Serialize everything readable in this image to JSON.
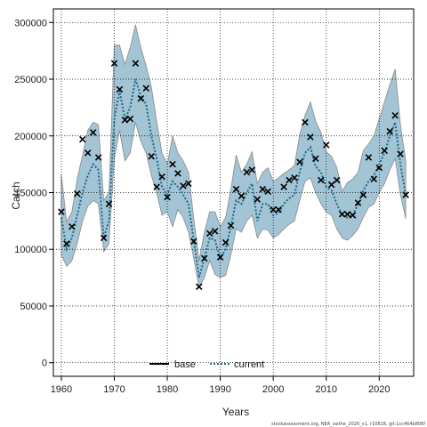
{
  "chart_data": {
    "type": "line",
    "xlabel": "Years",
    "ylabel": "Catch",
    "xlim": [
      1958.5,
      2026.5
    ],
    "ylim": [
      -12000,
      312000
    ],
    "x_ticks": [
      1960,
      1970,
      1980,
      1990,
      2000,
      2010,
      2020
    ],
    "x_tick_labels": [
      "1960",
      "1970",
      "1980",
      "1990",
      "2000",
      "2010",
      "2020"
    ],
    "y_ticks": [
      0,
      50000,
      100000,
      150000,
      200000,
      250000,
      300000
    ],
    "y_tick_labels": [
      "0",
      "50000",
      "100000",
      "150000",
      "200000",
      "250000",
      "300000"
    ],
    "grid": true,
    "legend_placement": "bottom-center",
    "legend": [
      {
        "label": "base",
        "style": "solid",
        "color": "#000000"
      },
      {
        "label": "current",
        "style": "dotted",
        "color": "#1a6b8a"
      }
    ],
    "credit": "stockassessment.org, NEA_saithe_2026_v1, r10818, git:1cc464b806f",
    "band_color": "#a3c4d4",
    "years": [
      1960,
      1961,
      1962,
      1963,
      1964,
      1965,
      1966,
      1967,
      1968,
      1969,
      1970,
      1971,
      1972,
      1973,
      1974,
      1975,
      1976,
      1977,
      1978,
      1979,
      1980,
      1981,
      1982,
      1983,
      1984,
      1985,
      1986,
      1987,
      1988,
      1989,
      1990,
      1991,
      1992,
      1993,
      1994,
      1995,
      1996,
      1997,
      1998,
      1999,
      2000,
      2001,
      2002,
      2003,
      2004,
      2005,
      2006,
      2007,
      2008,
      2009,
      2010,
      2011,
      2012,
      2013,
      2014,
      2015,
      2016,
      2017,
      2018,
      2019,
      2020,
      2021,
      2022,
      2023,
      2024,
      2025
    ],
    "series": [
      {
        "name": "current",
        "values": [
          128000,
          100000,
          110000,
          130000,
          150000,
          165000,
          175000,
          170000,
          110000,
          125000,
          215000,
          240000,
          215000,
          225000,
          250000,
          235000,
          228000,
          200000,
          180000,
          155000,
          148000,
          160000,
          155000,
          148000,
          140000,
          108000,
          75000,
          92000,
          110000,
          108000,
          92000,
          100000,
          120000,
          143000,
          140000,
          150000,
          158000,
          125000,
          140000,
          140000,
          130000,
          132000,
          140000,
          145000,
          148000,
          168000,
          185000,
          190000,
          173000,
          168000,
          155000,
          152000,
          140000,
          130000,
          128000,
          130000,
          140000,
          152000,
          160000,
          165000,
          175000,
          185000,
          200000,
          212000,
          175000,
          148000
        ],
        "lower": [
          95000,
          85000,
          90000,
          105000,
          125000,
          138000,
          143000,
          140000,
          98000,
          105000,
          180000,
          205000,
          178000,
          185000,
          212000,
          195000,
          185000,
          165000,
          150000,
          130000,
          133000,
          120000,
          135000,
          128000,
          115000,
          92000,
          66000,
          75000,
          90000,
          78000,
          75000,
          77000,
          95000,
          118000,
          115000,
          125000,
          130000,
          110000,
          118000,
          117000,
          110000,
          113000,
          118000,
          122000,
          125000,
          143000,
          160000,
          163000,
          150000,
          140000,
          133000,
          130000,
          118000,
          110000,
          108000,
          112000,
          118000,
          128000,
          137000,
          140000,
          150000,
          158000,
          170000,
          180000,
          148000,
          127000
        ],
        "upper": [
          166000,
          124000,
          133000,
          162000,
          183000,
          205000,
          212000,
          210000,
          143000,
          150000,
          280000,
          280000,
          263000,
          278000,
          298000,
          278000,
          262000,
          243000,
          213000,
          185000,
          175000,
          200000,
          185000,
          178000,
          168000,
          127000,
          90000,
          115000,
          133000,
          133000,
          120000,
          128000,
          153000,
          183000,
          168000,
          175000,
          186000,
          158000,
          168000,
          172000,
          160000,
          163000,
          167000,
          170000,
          174000,
          201000,
          218000,
          230000,
          213000,
          203000,
          186000,
          182000,
          172000,
          151000,
          159000,
          162000,
          168000,
          187000,
          193000,
          200000,
          215000,
          230000,
          245000,
          259000,
          210000,
          178000
        ],
        "observed": [
          133000,
          105000,
          120000,
          149000,
          197000,
          185000,
          203000,
          181000,
          110000,
          140000,
          264000,
          241000,
          214000,
          215000,
          264000,
          233000,
          242000,
          182000,
          155000,
          164000,
          146000,
          175000,
          167000,
          156000,
          158000,
          107000,
          67000,
          92000,
          114000,
          116000,
          93000,
          106000,
          121000,
          153000,
          147000,
          168000,
          170000,
          144000,
          153000,
          151000,
          135000,
          135000,
          155000,
          161000,
          163000,
          177000,
          212000,
          199000,
          180000,
          161000,
          192000,
          157000,
          161000,
          131000,
          131000,
          130000,
          141000,
          148000,
          181000,
          162000,
          172000,
          187000,
          204000,
          218000,
          184000,
          148000
        ]
      }
    ]
  }
}
